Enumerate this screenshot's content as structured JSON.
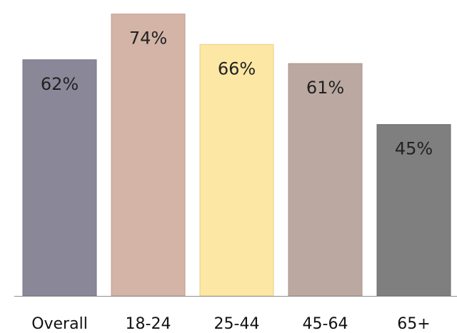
{
  "chart_data": {
    "type": "bar",
    "categories": [
      "Overall",
      "18-24",
      "25-44",
      "45-64",
      "65+"
    ],
    "values": [
      62,
      74,
      66,
      61,
      45
    ],
    "value_labels": [
      "62%",
      "74%",
      "66%",
      "61%",
      "45%"
    ],
    "colors": [
      "#8a8898",
      "#d3b4a6",
      "#fde7a4",
      "#bba9a1",
      "#7f7f7f"
    ],
    "border_colors": [
      "#76748a",
      "#c29d8d",
      "#e8cf82",
      "#a99388",
      "#6e6e6e"
    ],
    "unit": "%",
    "ylim": [
      0,
      76
    ],
    "grid": false,
    "title": "",
    "xlabel": "",
    "ylabel": ""
  }
}
